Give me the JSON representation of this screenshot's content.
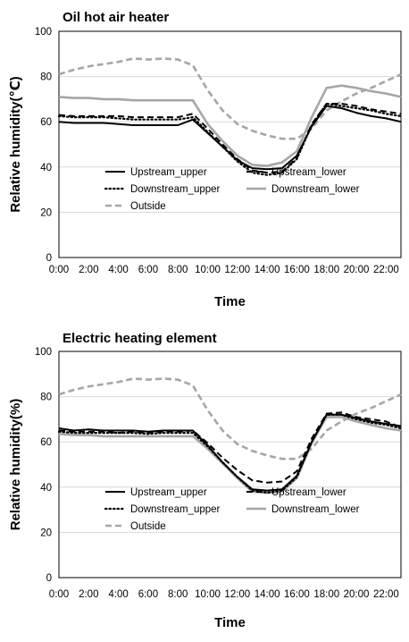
{
  "chart_data": [
    {
      "type": "line",
      "title": "Oil hot air heater",
      "xlabel": "Time",
      "ylabel": "Relative humidity(℃)",
      "ylim": [
        0,
        100
      ],
      "yticks": [
        "0",
        "20",
        "40",
        "60",
        "80",
        "100"
      ],
      "xlim": [
        0,
        23
      ],
      "x_tick_labels": [
        "0:00",
        "2:00",
        "4:00",
        "6:00",
        "8:00",
        "10:00",
        "12:00",
        "14:00",
        "16:00",
        "18:00",
        "20:00",
        "22:00"
      ],
      "grid": "horizontal",
      "legend": "inside, lower-left",
      "x": [
        0,
        1,
        2,
        3,
        4,
        5,
        6,
        7,
        8,
        9,
        10,
        11,
        12,
        13,
        14,
        15,
        16,
        17,
        18,
        19,
        20,
        21,
        22,
        23
      ],
      "series": [
        {
          "name": "Upstream_upper",
          "color": "#000000",
          "style": "solid",
          "values": [
            60,
            59.5,
            59.5,
            59.5,
            59,
            58.5,
            58.5,
            58.5,
            58.5,
            61,
            55,
            49,
            43,
            39.5,
            39,
            39.5,
            45,
            58,
            67,
            66,
            64,
            62.5,
            61.5,
            60
          ]
        },
        {
          "name": "Upstream_lower",
          "color": "#000000",
          "style": "dashed",
          "values": [
            63,
            62.5,
            62.5,
            62.5,
            62.5,
            62,
            62,
            62,
            62,
            63.5,
            57,
            50,
            43.5,
            38.5,
            37.5,
            38,
            44,
            59,
            68,
            68,
            67,
            65.5,
            64.5,
            63.5
          ]
        },
        {
          "name": "Downstream_upper",
          "color": "#000000",
          "style": "dotted",
          "values": [
            62.5,
            62,
            62,
            62,
            61.5,
            61,
            61,
            61,
            61,
            62,
            55.5,
            49,
            42.5,
            37.5,
            36.5,
            37.5,
            43.5,
            58.5,
            68,
            67,
            66,
            65,
            63.5,
            62.5
          ]
        },
        {
          "name": "Downstream_lower",
          "color": "#a6a6a6",
          "style": "solid",
          "values": [
            71,
            70.5,
            70.5,
            70,
            70,
            69.5,
            69.5,
            69.5,
            69.5,
            69.5,
            59,
            51.5,
            45,
            41,
            40.5,
            42,
            47,
            62,
            75,
            76,
            75,
            73.5,
            72.5,
            71
          ]
        },
        {
          "name": "Outside",
          "color": "#a6a6a6",
          "style": "dashed",
          "values": [
            81,
            83,
            84.5,
            85.5,
            86.5,
            88,
            87.5,
            88,
            87.5,
            85,
            74,
            65,
            59,
            56,
            54,
            52.5,
            52.5,
            57,
            65,
            69,
            72.5,
            75,
            78,
            81
          ]
        }
      ]
    },
    {
      "type": "line",
      "title": "Electric heating element",
      "xlabel": "Time",
      "ylabel": "Relative humidity(%)",
      "ylim": [
        0,
        100
      ],
      "yticks": [
        "0",
        "20",
        "40",
        "60",
        "80",
        "100"
      ],
      "xlim": [
        0,
        23
      ],
      "x_tick_labels": [
        "0:00",
        "2:00",
        "4:00",
        "6:00",
        "8:00",
        "10:00",
        "12:00",
        "14:00",
        "16:00",
        "18:00",
        "20:00",
        "22:00"
      ],
      "grid": "horizontal",
      "legend": "inside, lower-left",
      "x": [
        0,
        1,
        2,
        3,
        4,
        5,
        6,
        7,
        8,
        9,
        10,
        11,
        12,
        13,
        14,
        15,
        16,
        17,
        18,
        19,
        20,
        21,
        22,
        23
      ],
      "series": [
        {
          "name": "Upstream_upper",
          "color": "#000000",
          "style": "solid",
          "values": [
            66,
            65,
            65.5,
            65,
            65,
            65,
            64.5,
            65,
            65,
            65,
            58.5,
            51,
            44.5,
            39,
            38.5,
            39,
            45,
            60,
            72,
            72,
            70.5,
            69,
            68,
            67
          ]
        },
        {
          "name": "Upstream_lower",
          "color": "#000000",
          "style": "dashed",
          "values": [
            65,
            64.5,
            64.5,
            64.5,
            64,
            64.5,
            64,
            64.5,
            64.5,
            65,
            59.5,
            53,
            47.5,
            43,
            42,
            42.5,
            47,
            61.5,
            72.5,
            73,
            71,
            70,
            69,
            66.5
          ]
        },
        {
          "name": "Downstream_upper",
          "color": "#000000",
          "style": "dotted",
          "values": [
            64.5,
            64,
            64,
            64,
            64,
            64,
            63.5,
            64,
            64,
            64,
            58,
            51,
            44.5,
            38.5,
            37.5,
            38.5,
            44.5,
            60,
            72,
            72,
            70,
            68.5,
            67.5,
            66
          ]
        },
        {
          "name": "Downstream_lower",
          "color": "#a6a6a6",
          "style": "solid",
          "values": [
            63.5,
            63,
            63,
            62.5,
            62.5,
            62.5,
            62.5,
            62.5,
            62.5,
            62.5,
            57,
            50.5,
            44,
            38,
            37.5,
            38,
            44,
            59.5,
            71,
            71,
            69,
            67.5,
            66,
            65
          ]
        },
        {
          "name": "Outside",
          "color": "#a6a6a6",
          "style": "dashed",
          "values": [
            81,
            83,
            84.5,
            85.5,
            86.5,
            88,
            87.5,
            88,
            87.5,
            85,
            74,
            65,
            59,
            56,
            54,
            52.5,
            52.5,
            57,
            65,
            69,
            72.5,
            75,
            78,
            81
          ]
        }
      ]
    }
  ]
}
